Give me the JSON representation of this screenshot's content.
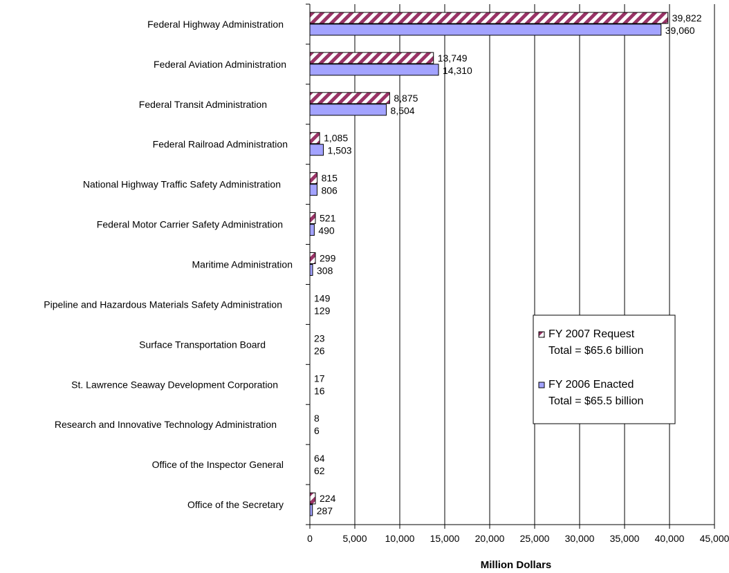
{
  "chart_data": {
    "type": "bar",
    "orientation": "horizontal",
    "categories": [
      "Federal Highway Administration",
      "Federal Aviation Administration",
      "Federal Transit Administration",
      "Federal Railroad Administration",
      "National Highway Traffic Safety Administration",
      "Federal Motor Carrier Safety Administration",
      "Maritime Administration",
      "Pipeline and Hazardous Materials Safety Administration",
      "Surface Transportation Board",
      "St. Lawrence Seaway Development Corporation",
      "Research and Innovative Technology Administration",
      "Office of the Inspector General",
      "Office of the Secretary"
    ],
    "series": [
      {
        "name": "FY 2007 Request",
        "legend_total": "Total = $65.6 billion",
        "values": [
          39822,
          13749,
          8875,
          1085,
          815,
          521,
          299,
          149,
          23,
          17,
          8,
          64,
          224
        ],
        "labels": [
          "39,822",
          "13,749",
          "8,875",
          "1,085",
          "815",
          "521",
          "299",
          "149",
          "23",
          "17",
          "8",
          "64",
          "224"
        ],
        "pattern": "diagonal-stripes",
        "color": "#993366"
      },
      {
        "name": "FY 2006 Enacted",
        "legend_total": "Total = $65.5 billion",
        "values": [
          39060,
          14310,
          8504,
          1503,
          806,
          490,
          308,
          129,
          26,
          16,
          6,
          62,
          287
        ],
        "labels": [
          "39,060",
          "14,310",
          "8,504",
          "1,503",
          "806",
          "490",
          "308",
          "129",
          "26",
          "16",
          "6",
          "62",
          "287"
        ],
        "pattern": "solid",
        "color": "#a3a3ff"
      }
    ],
    "xlabel": "Million Dollars",
    "xlim": [
      0,
      45000
    ],
    "xticks": [
      0,
      5000,
      10000,
      15000,
      20000,
      25000,
      30000,
      35000,
      40000,
      45000
    ],
    "xtick_labels": [
      "0",
      "5,000",
      "10,000",
      "15,000",
      "20,000",
      "25,000",
      "30,000",
      "35,000",
      "40,000",
      "45,000"
    ],
    "grid": "vertical",
    "legend_position": "right"
  }
}
